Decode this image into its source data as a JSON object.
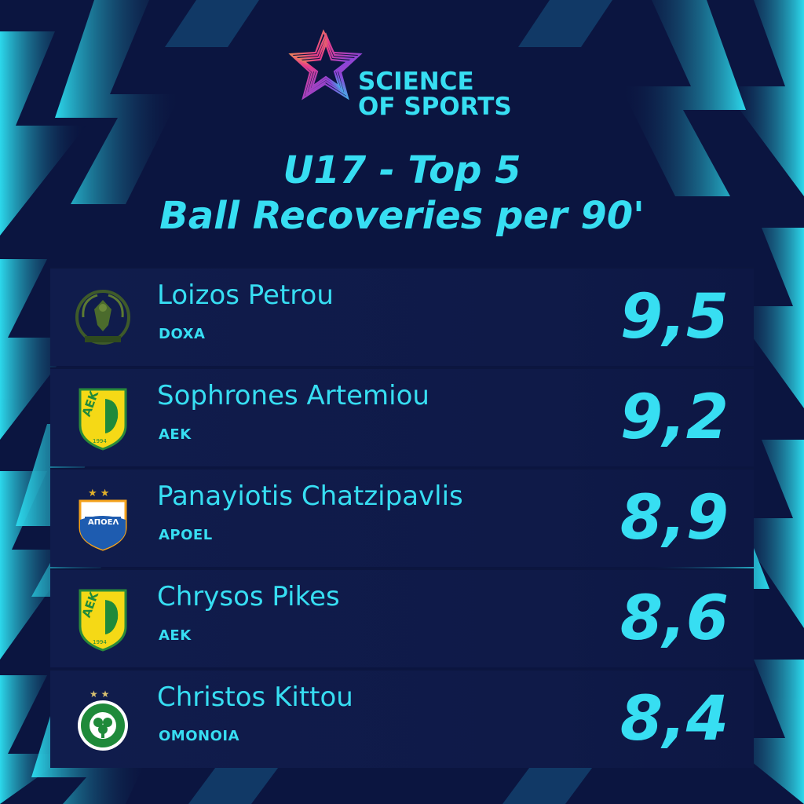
{
  "brand": {
    "line1": "SCIENCE",
    "line2": "OF SPORTS"
  },
  "title": {
    "line1": "U17 - Top 5",
    "line2": "Ball Recoveries per 90'"
  },
  "colors": {
    "accent": "#37def2",
    "background": "#0b1540",
    "row": "#101c4c"
  },
  "players": [
    {
      "name": "Loizos Petrou",
      "club": "DOXA",
      "value": "9,5",
      "crest": "doxa-crest"
    },
    {
      "name": "Sophrones Artemiou",
      "club": "AEK",
      "value": "9,2",
      "crest": "aek-crest"
    },
    {
      "name": "Panayiotis Chatzipavlis",
      "club": "APOEL",
      "value": "8,9",
      "crest": "apoel-crest"
    },
    {
      "name": "Chrysos Pikes",
      "club": "AEK",
      "value": "8,6",
      "crest": "aek-crest"
    },
    {
      "name": "Christos Kittou",
      "club": "OMONOIA",
      "value": "8,4",
      "crest": "omonoia-crest"
    }
  ]
}
